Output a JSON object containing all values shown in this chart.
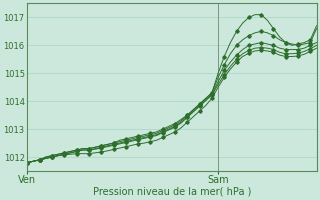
{
  "xlabel": "Pression niveau de la mer( hPa )",
  "background_color": "#cce8dc",
  "grid_color": "#a8d4c0",
  "line_color": "#2d6e2d",
  "ylim": [
    1011.5,
    1017.5
  ],
  "xlim": [
    0,
    47
  ],
  "yticks": [
    1012,
    1013,
    1014,
    1015,
    1016,
    1017
  ],
  "xtick_labels": [
    "Ven",
    "Sam"
  ],
  "xtick_positions": [
    0,
    31
  ],
  "sam_x": 31,
  "series": [
    [
      1011.8,
      1011.85,
      1011.9,
      1012.0,
      1012.05,
      1012.1,
      1012.15,
      1012.2,
      1012.25,
      1012.3,
      1012.3,
      1012.35,
      1012.4,
      1012.45,
      1012.5,
      1012.6,
      1012.65,
      1012.7,
      1012.75,
      1012.8,
      1012.85,
      1012.9,
      1013.0,
      1013.1,
      1013.2,
      1013.35,
      1013.5,
      1013.7,
      1013.9,
      1014.1,
      1014.3,
      1015.0,
      1015.6,
      1016.1,
      1016.5,
      1016.8,
      1017.0,
      1017.1,
      1017.1,
      1016.9,
      1016.6,
      1016.3,
      1016.1,
      1016.0,
      1016.05,
      1016.1,
      1016.2,
      1016.7
    ],
    [
      1011.8,
      1011.85,
      1011.9,
      1012.0,
      1012.05,
      1012.1,
      1012.15,
      1012.2,
      1012.25,
      1012.3,
      1012.3,
      1012.35,
      1012.4,
      1012.45,
      1012.5,
      1012.55,
      1012.6,
      1012.65,
      1012.7,
      1012.75,
      1012.8,
      1012.85,
      1012.95,
      1013.05,
      1013.15,
      1013.3,
      1013.5,
      1013.7,
      1013.9,
      1014.1,
      1014.3,
      1014.85,
      1015.3,
      1015.7,
      1016.0,
      1016.2,
      1016.35,
      1016.45,
      1016.5,
      1016.45,
      1016.35,
      1016.2,
      1016.1,
      1016.05,
      1016.0,
      1016.05,
      1016.1,
      1016.6
    ],
    [
      1011.8,
      1011.85,
      1011.9,
      1011.95,
      1012.0,
      1012.05,
      1012.1,
      1012.15,
      1012.2,
      1012.25,
      1012.25,
      1012.3,
      1012.35,
      1012.4,
      1012.45,
      1012.5,
      1012.55,
      1012.6,
      1012.65,
      1012.7,
      1012.75,
      1012.8,
      1012.9,
      1013.0,
      1013.1,
      1013.25,
      1013.45,
      1013.65,
      1013.85,
      1014.05,
      1014.25,
      1014.7,
      1015.1,
      1015.4,
      1015.65,
      1015.85,
      1016.0,
      1016.05,
      1016.1,
      1016.05,
      1016.0,
      1015.9,
      1015.85,
      1015.85,
      1015.85,
      1015.9,
      1016.0,
      1016.1
    ],
    [
      1011.8,
      1011.85,
      1011.9,
      1011.95,
      1012.0,
      1012.05,
      1012.1,
      1012.15,
      1012.2,
      1012.25,
      1012.25,
      1012.28,
      1012.32,
      1012.37,
      1012.42,
      1012.47,
      1012.52,
      1012.57,
      1012.62,
      1012.67,
      1012.72,
      1012.77,
      1012.87,
      1012.97,
      1013.07,
      1013.22,
      1013.42,
      1013.62,
      1013.82,
      1014.02,
      1014.22,
      1014.6,
      1014.95,
      1015.25,
      1015.5,
      1015.7,
      1015.82,
      1015.9,
      1015.92,
      1015.9,
      1015.85,
      1015.75,
      1015.7,
      1015.7,
      1015.72,
      1015.78,
      1015.88,
      1016.0
    ],
    [
      1011.8,
      1011.85,
      1011.9,
      1011.95,
      1012.0,
      1012.05,
      1012.08,
      1012.1,
      1012.12,
      1012.12,
      1012.12,
      1012.15,
      1012.18,
      1012.22,
      1012.27,
      1012.32,
      1012.37,
      1012.42,
      1012.47,
      1012.5,
      1012.55,
      1012.6,
      1012.7,
      1012.8,
      1012.9,
      1013.05,
      1013.25,
      1013.45,
      1013.65,
      1013.85,
      1014.1,
      1014.5,
      1014.85,
      1015.15,
      1015.4,
      1015.6,
      1015.72,
      1015.8,
      1015.82,
      1015.8,
      1015.75,
      1015.65,
      1015.6,
      1015.6,
      1015.62,
      1015.68,
      1015.78,
      1015.9
    ]
  ]
}
